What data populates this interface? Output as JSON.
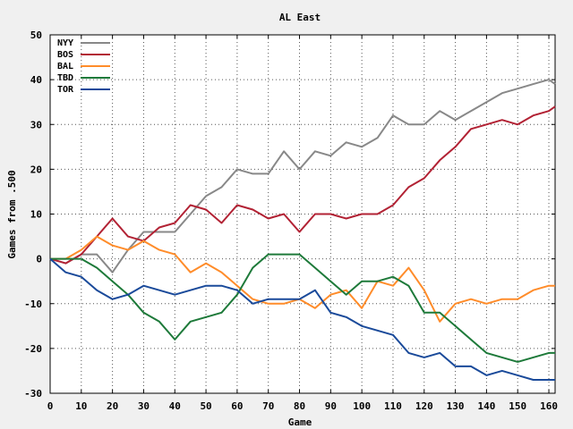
{
  "chart_data": {
    "type": "line",
    "title": "AL East",
    "xlabel": "Game",
    "ylabel": "Games from .500",
    "xlim": [
      0,
      162
    ],
    "ylim": [
      -30,
      50
    ],
    "xticks": [
      0,
      10,
      20,
      30,
      40,
      50,
      60,
      70,
      80,
      90,
      100,
      110,
      120,
      130,
      140,
      150,
      160
    ],
    "yticks": [
      -30,
      -20,
      -10,
      0,
      10,
      20,
      30,
      40,
      50
    ],
    "grid": true,
    "legend_position": "top-left",
    "colors": {
      "background": "#f0f0f0",
      "plot_background": "#ffffff"
    },
    "x": [
      0,
      5,
      10,
      15,
      20,
      25,
      30,
      35,
      40,
      45,
      50,
      55,
      60,
      65,
      70,
      75,
      80,
      85,
      90,
      95,
      100,
      105,
      110,
      115,
      120,
      125,
      130,
      135,
      140,
      145,
      150,
      155,
      160,
      162
    ],
    "series": [
      {
        "name": "NYY",
        "color": "#888888",
        "values": [
          0,
          -1,
          1,
          1,
          -3,
          2,
          6,
          6,
          6,
          10,
          14,
          16,
          20,
          19,
          19,
          24,
          20,
          24,
          23,
          26,
          25,
          27,
          32,
          30,
          30,
          33,
          31,
          33,
          35,
          37,
          38,
          39,
          40,
          39
        ]
      },
      {
        "name": "BOS",
        "color": "#b22234",
        "values": [
          0,
          -1,
          1,
          5,
          9,
          5,
          4,
          7,
          8,
          12,
          11,
          8,
          12,
          11,
          9,
          10,
          6,
          10,
          10,
          9,
          10,
          10,
          12,
          16,
          18,
          22,
          25,
          29,
          30,
          31,
          30,
          32,
          33,
          34
        ]
      },
      {
        "name": "BAL",
        "color": "#ff8c2a",
        "values": [
          0,
          0,
          2,
          5,
          3,
          2,
          4,
          2,
          1,
          -3,
          -1,
          -3,
          -6,
          -9,
          -10,
          -10,
          -9,
          -11,
          -8,
          -7,
          -11,
          -5,
          -6,
          -2,
          -7,
          -14,
          -10,
          -9,
          -10,
          -9,
          -9,
          -7,
          -6,
          -6
        ]
      },
      {
        "name": "TBD",
        "color": "#1e7a3a",
        "values": [
          0,
          0,
          0,
          -2,
          -5,
          -8,
          -12,
          -14,
          -18,
          -14,
          -13,
          -12,
          -8,
          -2,
          1,
          1,
          1,
          -2,
          -5,
          -8,
          -5,
          -5,
          -4,
          -6,
          -12,
          -12,
          -15,
          -18,
          -21,
          -22,
          -23,
          -22,
          -21,
          -21
        ]
      },
      {
        "name": "TOR",
        "color": "#1a4a9a",
        "values": [
          0,
          -3,
          -4,
          -7,
          -9,
          -8,
          -6,
          -7,
          -8,
          -7,
          -6,
          -6,
          -7,
          -10,
          -9,
          -9,
          -9,
          -7,
          -12,
          -13,
          -15,
          -16,
          -17,
          -21,
          -22,
          -21,
          -24,
          -24,
          -26,
          -25,
          -26,
          -27,
          -27,
          -27
        ]
      }
    ]
  }
}
